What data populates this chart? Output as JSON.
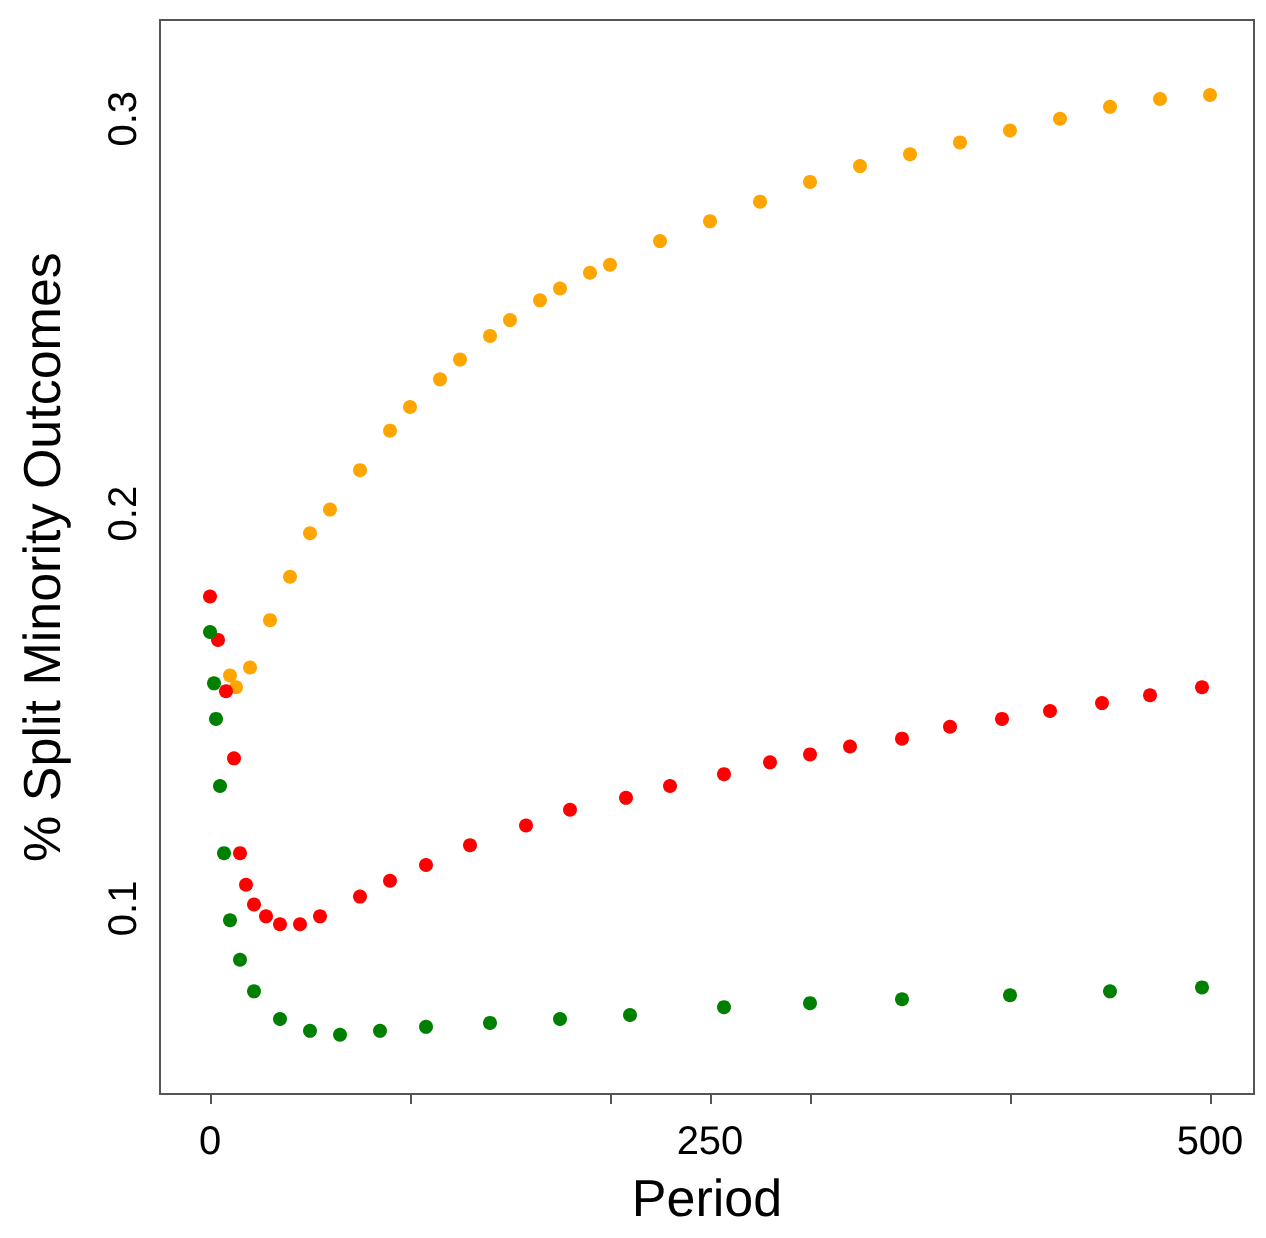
{
  "chart_data": {
    "type": "scatter",
    "xlabel": "Period",
    "ylabel": "% Split Minority Outcomes",
    "marker": "circle",
    "xlim": [
      -25,
      522
    ],
    "ylim": [
      0.053,
      0.325
    ],
    "xticks": [
      0,
      {
        "value": 100,
        "label": null
      },
      {
        "value": 200,
        "label": null
      },
      250,
      {
        "value": 300,
        "label": null
      },
      {
        "value": 400,
        "label": null
      },
      500
    ],
    "yticks": [
      0.1,
      0.2,
      0.3
    ],
    "series": [
      {
        "color": "#ffa500",
        "x": [
          10,
          13,
          20,
          30,
          40,
          50,
          60,
          75,
          90,
          100,
          115,
          125,
          140,
          150,
          165,
          175,
          190,
          200,
          225,
          250,
          275,
          300,
          325,
          350,
          375,
          400,
          425,
          450,
          475,
          500
        ],
        "values": [
          0.159,
          0.156,
          0.161,
          0.173,
          0.184,
          0.195,
          0.201,
          0.211,
          0.221,
          0.227,
          0.234,
          0.239,
          0.245,
          0.249,
          0.254,
          0.257,
          0.261,
          0.263,
          0.269,
          0.274,
          0.279,
          0.284,
          0.288,
          0.291,
          0.294,
          0.297,
          0.3,
          0.303,
          0.305,
          0.306
        ]
      },
      {
        "color": "#ff0000",
        "x": [
          0,
          4,
          8,
          12,
          15,
          18,
          22,
          28,
          35,
          45,
          55,
          75,
          90,
          108,
          130,
          158,
          180,
          208,
          230,
          257,
          280,
          300,
          320,
          346,
          370,
          396,
          420,
          446,
          470,
          496
        ],
        "values": [
          0.179,
          0.168,
          0.155,
          0.138,
          0.114,
          0.106,
          0.101,
          0.098,
          0.096,
          0.096,
          0.098,
          0.103,
          0.107,
          0.111,
          0.116,
          0.121,
          0.125,
          0.128,
          0.131,
          0.134,
          0.137,
          0.139,
          0.141,
          0.143,
          0.146,
          0.148,
          0.15,
          0.152,
          0.154,
          0.156
        ]
      },
      {
        "color": "#008000",
        "x": [
          0,
          2,
          3,
          5,
          7,
          10,
          15,
          22,
          35,
          50,
          65,
          85,
          108,
          140,
          175,
          210,
          257,
          300,
          346,
          400,
          450,
          496
        ],
        "values": [
          0.17,
          0.157,
          0.148,
          0.131,
          0.114,
          0.097,
          0.087,
          0.079,
          0.072,
          0.069,
          0.068,
          0.069,
          0.07,
          0.071,
          0.072,
          0.073,
          0.075,
          0.076,
          0.077,
          0.078,
          0.079,
          0.08
        ]
      }
    ]
  }
}
